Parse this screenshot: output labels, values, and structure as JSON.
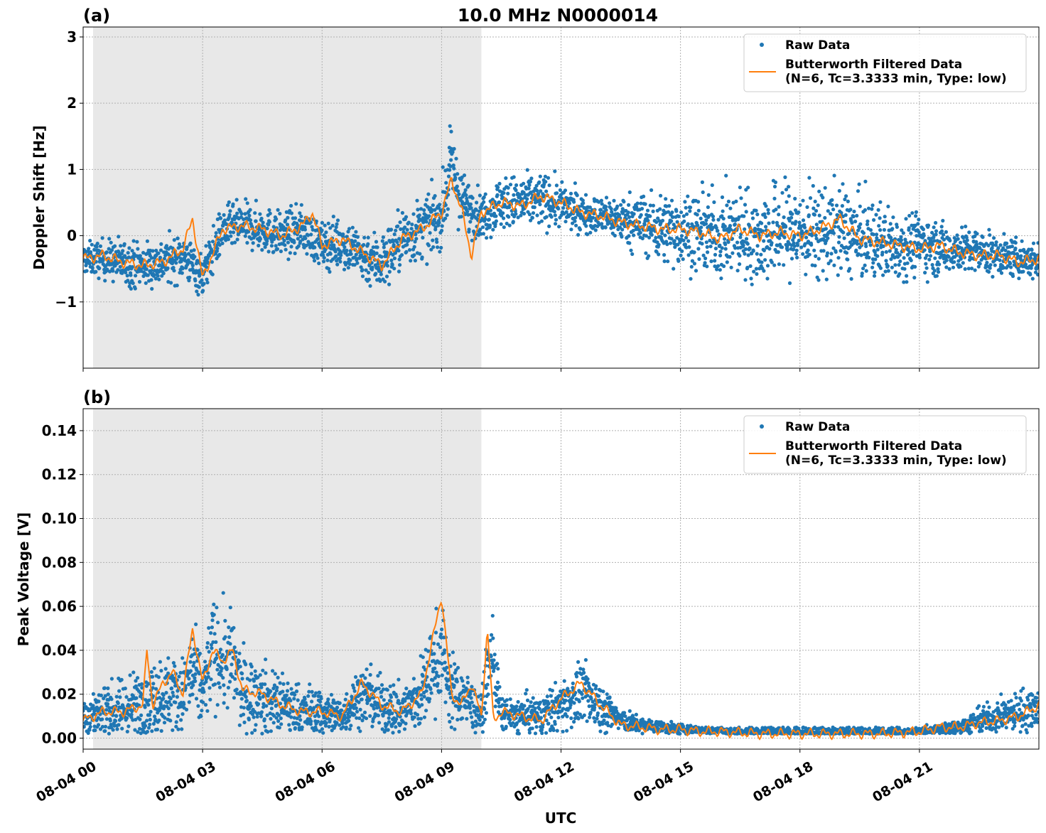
{
  "figure": {
    "title": "10.0 MHz N0000014",
    "xlabel": "UTC"
  },
  "colors": {
    "raw": "#1f77b4",
    "filtered": "#ff7f0e",
    "shade": "#e8e8e8",
    "grid": "#b0b0b0"
  },
  "chart_data": [
    {
      "type": "scatter",
      "panel_label": "(a)",
      "ylabel": "Doppler Shift [Hz]",
      "xlim_hours": [
        0,
        24
      ],
      "ylim": [
        -2.0,
        3.15
      ],
      "x_ticks": [
        0,
        3,
        6,
        9,
        12,
        15,
        18,
        21
      ],
      "x_tick_labels": [
        "08-04 00",
        "08-04 03",
        "08-04 06",
        "08-04 09",
        "08-04 12",
        "08-04 15",
        "08-04 18",
        "08-04 21"
      ],
      "y_ticks": [
        -1,
        0,
        1,
        2,
        3
      ],
      "y_tick_labels": [
        "−1",
        "0",
        "1",
        "2",
        "3"
      ],
      "grid": true,
      "legend_position": "top-right",
      "shaded_span_hours": [
        0.25,
        10.0
      ],
      "series": [
        {
          "name": "Raw Data",
          "style": "points",
          "x_hours": [
            0.0,
            0.5,
            1.0,
            1.5,
            2.0,
            2.5,
            3.0,
            3.5,
            4.0,
            4.5,
            5.0,
            5.5,
            6.0,
            6.5,
            7.0,
            7.5,
            8.0,
            8.5,
            9.0,
            9.25,
            9.5,
            10.0,
            10.5,
            11.0,
            11.5,
            12.0,
            12.5,
            13.0,
            13.5,
            14.0,
            14.5,
            15.0,
            15.5,
            16.0,
            16.5,
            17.0,
            17.5,
            18.0,
            18.5,
            19.0,
            19.5,
            20.0,
            20.5,
            21.0,
            21.5,
            22.0,
            22.5,
            23.0,
            23.5,
            24.0
          ],
          "center": [
            -0.35,
            -0.35,
            -0.4,
            -0.45,
            -0.4,
            -0.3,
            -0.6,
            0.1,
            0.15,
            0.1,
            0.0,
            0.1,
            -0.15,
            -0.1,
            -0.3,
            -0.4,
            -0.05,
            0.1,
            0.3,
            1.1,
            0.5,
            0.3,
            0.5,
            0.5,
            0.55,
            0.45,
            0.35,
            0.3,
            0.25,
            0.2,
            0.1,
            0.1,
            0.05,
            0.0,
            0.05,
            -0.05,
            0.1,
            0.05,
            0.05,
            0.1,
            -0.05,
            -0.1,
            -0.15,
            -0.1,
            -0.2,
            -0.2,
            -0.25,
            -0.3,
            -0.35,
            -0.4
          ],
          "spread": [
            0.2,
            0.25,
            0.3,
            0.3,
            0.3,
            0.3,
            0.3,
            0.3,
            0.3,
            0.3,
            0.3,
            0.3,
            0.3,
            0.35,
            0.35,
            0.4,
            0.4,
            0.4,
            0.4,
            0.5,
            0.4,
            0.3,
            0.35,
            0.35,
            0.35,
            0.3,
            0.25,
            0.25,
            0.3,
            0.4,
            0.45,
            0.5,
            0.5,
            0.55,
            0.6,
            0.6,
            0.65,
            0.6,
            0.6,
            0.6,
            0.55,
            0.5,
            0.45,
            0.4,
            0.35,
            0.3,
            0.3,
            0.25,
            0.25,
            0.25
          ]
        },
        {
          "name": "Butterworth Filtered Data\n(N=6, Tc=3.3333 min, Type: low)",
          "style": "line",
          "x_hours": [
            0.0,
            0.5,
            1.0,
            1.5,
            2.0,
            2.5,
            2.75,
            3.0,
            3.5,
            4.0,
            4.5,
            5.0,
            5.5,
            5.75,
            6.0,
            6.5,
            7.0,
            7.5,
            8.0,
            8.5,
            9.0,
            9.25,
            9.5,
            9.75,
            10.0,
            10.5,
            11.0,
            11.5,
            12.0,
            12.5,
            13.0,
            13.5,
            14.0,
            14.5,
            15.0,
            15.5,
            16.0,
            16.5,
            17.0,
            17.5,
            18.0,
            18.5,
            19.0,
            19.5,
            20.0,
            20.5,
            21.0,
            21.5,
            22.0,
            22.5,
            23.0,
            23.5,
            24.0
          ],
          "values": [
            -0.35,
            -0.3,
            -0.4,
            -0.45,
            -0.4,
            -0.2,
            0.25,
            -0.65,
            0.1,
            0.15,
            0.1,
            0.0,
            0.15,
            0.35,
            -0.15,
            -0.05,
            -0.25,
            -0.45,
            -0.05,
            0.1,
            0.35,
            0.85,
            0.4,
            -0.3,
            0.35,
            0.5,
            0.45,
            0.6,
            0.5,
            0.35,
            0.3,
            0.2,
            0.15,
            0.1,
            0.1,
            0.05,
            -0.05,
            0.1,
            0.0,
            0.05,
            0.0,
            0.1,
            0.25,
            -0.05,
            -0.1,
            -0.15,
            -0.2,
            -0.15,
            -0.25,
            -0.3,
            -0.3,
            -0.4,
            -0.35
          ]
        }
      ]
    },
    {
      "type": "scatter",
      "panel_label": "(b)",
      "ylabel": "Peak Voltage [V]",
      "xlim_hours": [
        0,
        24
      ],
      "ylim": [
        -0.005,
        0.15
      ],
      "x_ticks": [
        0,
        3,
        6,
        9,
        12,
        15,
        18,
        21
      ],
      "x_tick_labels": [
        "08-04 00",
        "08-04 03",
        "08-04 06",
        "08-04 09",
        "08-04 12",
        "08-04 15",
        "08-04 18",
        "08-04 21"
      ],
      "y_ticks": [
        0.0,
        0.02,
        0.04,
        0.06,
        0.08,
        0.1,
        0.12,
        0.14
      ],
      "y_tick_labels": [
        "0.00",
        "0.02",
        "0.04",
        "0.06",
        "0.08",
        "0.10",
        "0.12",
        "0.14"
      ],
      "grid": true,
      "legend_position": "top-right",
      "shaded_span_hours": [
        0.25,
        10.0
      ],
      "series": [
        {
          "name": "Raw Data",
          "style": "points",
          "x_hours": [
            0.0,
            0.5,
            1.0,
            1.5,
            2.0,
            2.5,
            2.75,
            3.0,
            3.25,
            3.5,
            3.75,
            4.0,
            4.5,
            5.0,
            5.5,
            6.0,
            6.5,
            7.0,
            7.5,
            8.0,
            8.5,
            9.0,
            9.25,
            9.5,
            10.0,
            10.25,
            10.5,
            11.0,
            11.5,
            12.0,
            12.5,
            13.0,
            13.5,
            14.0,
            15.0,
            16.0,
            17.0,
            18.0,
            19.0,
            20.0,
            21.0,
            22.0,
            22.5,
            23.0,
            23.5,
            24.0
          ],
          "center": [
            0.01,
            0.012,
            0.013,
            0.015,
            0.02,
            0.02,
            0.03,
            0.02,
            0.04,
            0.035,
            0.035,
            0.02,
            0.018,
            0.015,
            0.012,
            0.012,
            0.01,
            0.02,
            0.015,
            0.012,
            0.02,
            0.04,
            0.02,
            0.02,
            0.01,
            0.04,
            0.01,
            0.01,
            0.01,
            0.015,
            0.02,
            0.015,
            0.008,
            0.006,
            0.004,
            0.003,
            0.002,
            0.002,
            0.002,
            0.002,
            0.003,
            0.005,
            0.008,
            0.01,
            0.012,
            0.015
          ],
          "spread": [
            0.008,
            0.01,
            0.012,
            0.015,
            0.015,
            0.015,
            0.02,
            0.015,
            0.02,
            0.02,
            0.02,
            0.015,
            0.015,
            0.012,
            0.01,
            0.01,
            0.008,
            0.012,
            0.012,
            0.01,
            0.015,
            0.02,
            0.015,
            0.012,
            0.008,
            0.015,
            0.008,
            0.008,
            0.008,
            0.01,
            0.012,
            0.01,
            0.005,
            0.003,
            0.002,
            0.0015,
            0.001,
            0.001,
            0.001,
            0.001,
            0.0015,
            0.003,
            0.005,
            0.006,
            0.008,
            0.01
          ]
        },
        {
          "name": "Butterworth Filtered Data\n(N=6, Tc=3.3333 min, Type: low)",
          "style": "line",
          "x_hours": [
            0.0,
            0.5,
            1.0,
            1.5,
            1.6,
            1.75,
            2.0,
            2.25,
            2.5,
            2.75,
            3.0,
            3.25,
            3.5,
            3.75,
            4.0,
            4.5,
            5.0,
            5.5,
            6.0,
            6.5,
            7.0,
            7.5,
            8.0,
            8.5,
            9.0,
            9.25,
            9.5,
            9.75,
            10.0,
            10.15,
            10.3,
            10.5,
            11.0,
            11.5,
            12.0,
            12.5,
            13.0,
            13.5,
            14.0,
            14.5,
            15.0,
            15.5,
            16.0,
            17.0,
            18.0,
            19.0,
            20.0,
            21.0,
            21.5,
            22.0,
            22.5,
            23.0,
            23.5,
            24.0
          ],
          "values": [
            0.008,
            0.012,
            0.012,
            0.015,
            0.04,
            0.015,
            0.025,
            0.03,
            0.02,
            0.05,
            0.025,
            0.04,
            0.035,
            0.04,
            0.022,
            0.02,
            0.015,
            0.012,
            0.012,
            0.01,
            0.025,
            0.015,
            0.012,
            0.02,
            0.065,
            0.02,
            0.015,
            0.025,
            0.01,
            0.05,
            0.008,
            0.012,
            0.01,
            0.008,
            0.018,
            0.025,
            0.015,
            0.006,
            0.005,
            0.004,
            0.004,
            0.003,
            0.003,
            0.002,
            0.002,
            0.002,
            0.002,
            0.003,
            0.005,
            0.005,
            0.007,
            0.008,
            0.01,
            0.015
          ]
        }
      ]
    }
  ]
}
